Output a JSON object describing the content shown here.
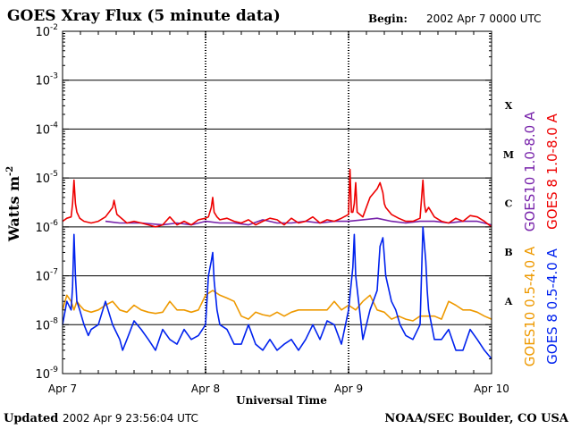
{
  "header": {
    "title": "GOES Xray Flux (5 minute data)",
    "begin_label": "Begin:",
    "begin_value": "2002 Apr 7 0000 UTC"
  },
  "footer": {
    "updated_label": "Updated",
    "updated_value": "2002 Apr  9 23:56:04 UTC",
    "source": "NOAA/SEC Boulder, CO USA"
  },
  "colors": {
    "goes8_long": "#ee0000",
    "goes10_long": "#7722aa",
    "goes10_short": "#ee9900",
    "goes8_short": "#0022ee"
  },
  "chart_data": {
    "type": "line",
    "title": "GOES Xray Flux (5 minute data)",
    "xlabel": "Universal Time",
    "ylabel": "Watts m",
    "ylabel_sup": "-2",
    "yscale": "log",
    "ylim": [
      1e-09,
      0.01
    ],
    "xlim_days": [
      0,
      3
    ],
    "x_ticks": [
      {
        "day": 0,
        "label": "Apr 7"
      },
      {
        "day": 1,
        "label": "Apr 8"
      },
      {
        "day": 2,
        "label": "Apr 9"
      },
      {
        "day": 3,
        "label": "Apr 10"
      }
    ],
    "y_ticks": [
      {
        "exp": -9,
        "label": "10",
        "sup": "-9"
      },
      {
        "exp": -8,
        "label": "10",
        "sup": "-8"
      },
      {
        "exp": -7,
        "label": "10",
        "sup": "-7"
      },
      {
        "exp": -6,
        "label": "10",
        "sup": "-6"
      },
      {
        "exp": -5,
        "label": "10",
        "sup": "-5"
      },
      {
        "exp": -4,
        "label": "10",
        "sup": "-4"
      },
      {
        "exp": -3,
        "label": "10",
        "sup": "-3"
      },
      {
        "exp": -2,
        "label": "10",
        "sup": "-2"
      }
    ],
    "gridlines_exp": [
      -8,
      -7,
      -6,
      -5,
      -4,
      -3
    ],
    "flare_classes": [
      {
        "label": "A",
        "exp": -7.5
      },
      {
        "label": "B",
        "exp": -6.5
      },
      {
        "label": "C",
        "exp": -5.5
      },
      {
        "label": "M",
        "exp": -4.5
      },
      {
        "label": "X",
        "exp": -3.5
      }
    ],
    "day_boundaries": [
      1,
      2
    ],
    "series": [
      {
        "name": "GOES10 0.5-4.0 A",
        "color": "#ee9900",
        "x": [
          0,
          0.03,
          0.06,
          0.08,
          0.1,
          0.12,
          0.15,
          0.2,
          0.25,
          0.3,
          0.35,
          0.4,
          0.45,
          0.5,
          0.55,
          0.6,
          0.65,
          0.7,
          0.75,
          0.8,
          0.85,
          0.9,
          0.95,
          1,
          1.05,
          1.1,
          1.15,
          1.2,
          1.25,
          1.3,
          1.35,
          1.4,
          1.45,
          1.5,
          1.55,
          1.6,
          1.65,
          1.7,
          1.75,
          1.8,
          1.85,
          1.9,
          1.95,
          2,
          2.05,
          2.1,
          2.15,
          2.2,
          2.25,
          2.3,
          2.35,
          2.4,
          2.45,
          2.5,
          2.55,
          2.6,
          2.65,
          2.7,
          2.75,
          2.8,
          2.85,
          2.9,
          2.95,
          3
        ],
        "y": [
          2e-08,
          4e-08,
          3e-08,
          2e-08,
          3e-08,
          2.5e-08,
          2e-08,
          1.8e-08,
          2e-08,
          2.5e-08,
          3e-08,
          2e-08,
          1.8e-08,
          2.5e-08,
          2e-08,
          1.8e-08,
          1.7e-08,
          1.8e-08,
          3e-08,
          2e-08,
          2e-08,
          1.8e-08,
          2e-08,
          4e-08,
          5e-08,
          4e-08,
          3.5e-08,
          3e-08,
          1.5e-08,
          1.3e-08,
          1.8e-08,
          1.6e-08,
          1.5e-08,
          1.8e-08,
          1.5e-08,
          1.8e-08,
          2e-08,
          2e-08,
          2e-08,
          2e-08,
          2e-08,
          3e-08,
          2e-08,
          2.5e-08,
          2e-08,
          3e-08,
          4e-08,
          2e-08,
          1.8e-08,
          1.3e-08,
          1.5e-08,
          1.3e-08,
          1.2e-08,
          1.5e-08,
          1.5e-08,
          1.5e-08,
          1.3e-08,
          3e-08,
          2.5e-08,
          2e-08,
          2e-08,
          1.8e-08,
          1.5e-08,
          1.3e-08
        ]
      },
      {
        "name": "GOES 8 0.5-4.0 A",
        "color": "#0022ee",
        "x": [
          0,
          0.03,
          0.06,
          0.07,
          0.08,
          0.09,
          0.1,
          0.12,
          0.15,
          0.18,
          0.2,
          0.25,
          0.3,
          0.35,
          0.4,
          0.42,
          0.45,
          0.5,
          0.55,
          0.6,
          0.65,
          0.7,
          0.75,
          0.8,
          0.85,
          0.9,
          0.95,
          1,
          1.02,
          1.04,
          1.05,
          1.06,
          1.08,
          1.1,
          1.15,
          1.2,
          1.25,
          1.3,
          1.35,
          1.4,
          1.45,
          1.5,
          1.55,
          1.6,
          1.65,
          1.7,
          1.75,
          1.8,
          1.85,
          1.9,
          1.95,
          2,
          2.03,
          2.04,
          2.05,
          2.1,
          2.15,
          2.2,
          2.22,
          2.24,
          2.25,
          2.26,
          2.3,
          2.33,
          2.36,
          2.4,
          2.45,
          2.5,
          2.52,
          2.54,
          2.55,
          2.56,
          2.6,
          2.65,
          2.7,
          2.75,
          2.8,
          2.85,
          2.9,
          2.95,
          3
        ],
        "y": [
          1e-08,
          3e-08,
          2e-08,
          6e-08,
          7e-07,
          1e-07,
          3e-08,
          2e-08,
          1e-08,
          6e-09,
          8e-09,
          1e-08,
          3e-08,
          1e-08,
          5e-09,
          3e-09,
          5e-09,
          1.2e-08,
          8e-09,
          5e-09,
          3e-09,
          8e-09,
          5e-09,
          4e-09,
          8e-09,
          5e-09,
          6e-09,
          1e-08,
          1e-07,
          2e-07,
          3e-07,
          8e-08,
          2e-08,
          1e-08,
          8e-09,
          4e-09,
          4e-09,
          1e-08,
          4e-09,
          3e-09,
          5e-09,
          3e-09,
          4e-09,
          5e-09,
          3e-09,
          5e-09,
          1e-08,
          5e-09,
          1.2e-08,
          1e-08,
          4e-09,
          2e-08,
          1.5e-07,
          7e-07,
          1e-07,
          5e-09,
          2e-08,
          5e-08,
          4e-07,
          6e-07,
          2.5e-07,
          1e-07,
          3e-08,
          2e-08,
          1e-08,
          6e-09,
          5e-09,
          1e-08,
          1e-06,
          2e-07,
          5e-08,
          2e-08,
          5e-09,
          5e-09,
          8e-09,
          3e-09,
          3e-09,
          8e-09,
          5e-09,
          3e-09,
          2e-09
        ]
      },
      {
        "name": "GOES10 1.0-8.0 A",
        "color": "#7722aa",
        "x": [
          0.3,
          0.4,
          0.55,
          0.7,
          0.8,
          0.9,
          1,
          1.1,
          1.2,
          1.3,
          1.4,
          1.5,
          1.6,
          1.7,
          1.8,
          1.9,
          2,
          2.1,
          2.2,
          2.3,
          2.4,
          2.5,
          2.6,
          2.7,
          2.8,
          2.9,
          3
        ],
        "y": [
          1.3e-06,
          1.2e-06,
          1.2e-06,
          1.1e-06,
          1.2e-06,
          1.1e-06,
          1.3e-06,
          1.2e-06,
          1.2e-06,
          1.1e-06,
          1.4e-06,
          1.2e-06,
          1.2e-06,
          1.3e-06,
          1.2e-06,
          1.3e-06,
          1.3e-06,
          1.4e-06,
          1.5e-06,
          1.3e-06,
          1.2e-06,
          1.3e-06,
          1.3e-06,
          1.2e-06,
          1.3e-06,
          1.3e-06,
          1.1e-06
        ]
      },
      {
        "name": "GOES 8 1.0-8.0 A",
        "color": "#ee0000",
        "x": [
          0,
          0.03,
          0.06,
          0.07,
          0.08,
          0.09,
          0.1,
          0.12,
          0.15,
          0.2,
          0.25,
          0.3,
          0.35,
          0.36,
          0.38,
          0.45,
          0.5,
          0.55,
          0.6,
          0.65,
          0.7,
          0.75,
          0.8,
          0.85,
          0.9,
          0.95,
          1,
          1.02,
          1.04,
          1.05,
          1.06,
          1.08,
          1.1,
          1.15,
          1.2,
          1.25,
          1.3,
          1.35,
          1.4,
          1.45,
          1.5,
          1.55,
          1.6,
          1.65,
          1.7,
          1.75,
          1.8,
          1.85,
          1.9,
          1.95,
          2,
          2.01,
          2.02,
          2.03,
          2.04,
          2.05,
          2.06,
          2.1,
          2.15,
          2.2,
          2.22,
          2.24,
          2.25,
          2.26,
          2.3,
          2.35,
          2.4,
          2.45,
          2.5,
          2.52,
          2.53,
          2.54,
          2.56,
          2.6,
          2.65,
          2.7,
          2.75,
          2.8,
          2.85,
          2.9,
          2.95,
          3
        ],
        "y": [
          1.3e-06,
          1.5e-06,
          1.6e-06,
          3e-06,
          9e-06,
          3e-06,
          2e-06,
          1.5e-06,
          1.3e-06,
          1.2e-06,
          1.3e-06,
          1.6e-06,
          2.5e-06,
          3.5e-06,
          1.8e-06,
          1.2e-06,
          1.3e-06,
          1.2e-06,
          1.1e-06,
          1e-06,
          1.1e-06,
          1.6e-06,
          1.1e-06,
          1.3e-06,
          1.1e-06,
          1.4e-06,
          1.5e-06,
          1.6e-06,
          2.5e-06,
          4e-06,
          2e-06,
          1.6e-06,
          1.4e-06,
          1.5e-06,
          1.3e-06,
          1.2e-06,
          1.4e-06,
          1.1e-06,
          1.3e-06,
          1.5e-06,
          1.4e-06,
          1.1e-06,
          1.5e-06,
          1.2e-06,
          1.3e-06,
          1.6e-06,
          1.2e-06,
          1.4e-06,
          1.3e-06,
          1.5e-06,
          1.8e-06,
          1.5e-05,
          2e-06,
          2e-06,
          3e-06,
          8e-06,
          2e-06,
          1.6e-06,
          4e-06,
          6e-06,
          8e-06,
          5e-06,
          3e-06,
          2.5e-06,
          1.8e-06,
          1.5e-06,
          1.3e-06,
          1.3e-06,
          1.5e-06,
          9e-06,
          3e-06,
          2e-06,
          2.5e-06,
          1.6e-06,
          1.3e-06,
          1.2e-06,
          1.5e-06,
          1.3e-06,
          1.7e-06,
          1.6e-06,
          1.3e-06,
          1e-06
        ]
      }
    ]
  }
}
